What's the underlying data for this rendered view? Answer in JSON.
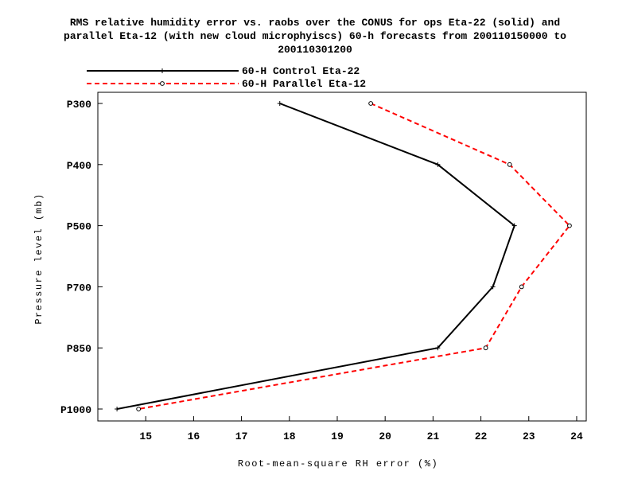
{
  "chart_data": {
    "type": "line",
    "title_lines": [
      "RMS relative humidity error vs. raobs over the CONUS for ops Eta-22 (solid) and",
      "parallel Eta-12 (with new cloud microphyiscs) 60-h forecasts from 200110150000 to",
      "200110301200"
    ],
    "xlabel": "Root-mean-square RH error (%)",
    "ylabel": "Pressure level (mb)",
    "xlim": [
      14,
      24.2
    ],
    "x_ticks": [
      "15",
      "16",
      "17",
      "18",
      "19",
      "20",
      "21",
      "22",
      "23",
      "24"
    ],
    "categories": [
      "P300",
      "P400",
      "P500",
      "P700",
      "P850",
      "P1000"
    ],
    "legend_placement": "top-left",
    "grid": false,
    "series": [
      {
        "name": "60-H Control Eta-22",
        "color": "#000000",
        "line_style": "solid",
        "marker": "plus",
        "values": [
          17.8,
          21.1,
          22.7,
          22.25,
          21.1,
          14.4
        ]
      },
      {
        "name": "60-H Parallel Eta-12",
        "color": "#ff0000",
        "line_style": "dashed",
        "marker": "circle",
        "values": [
          19.7,
          22.6,
          23.85,
          22.85,
          22.1,
          14.85
        ]
      }
    ]
  }
}
